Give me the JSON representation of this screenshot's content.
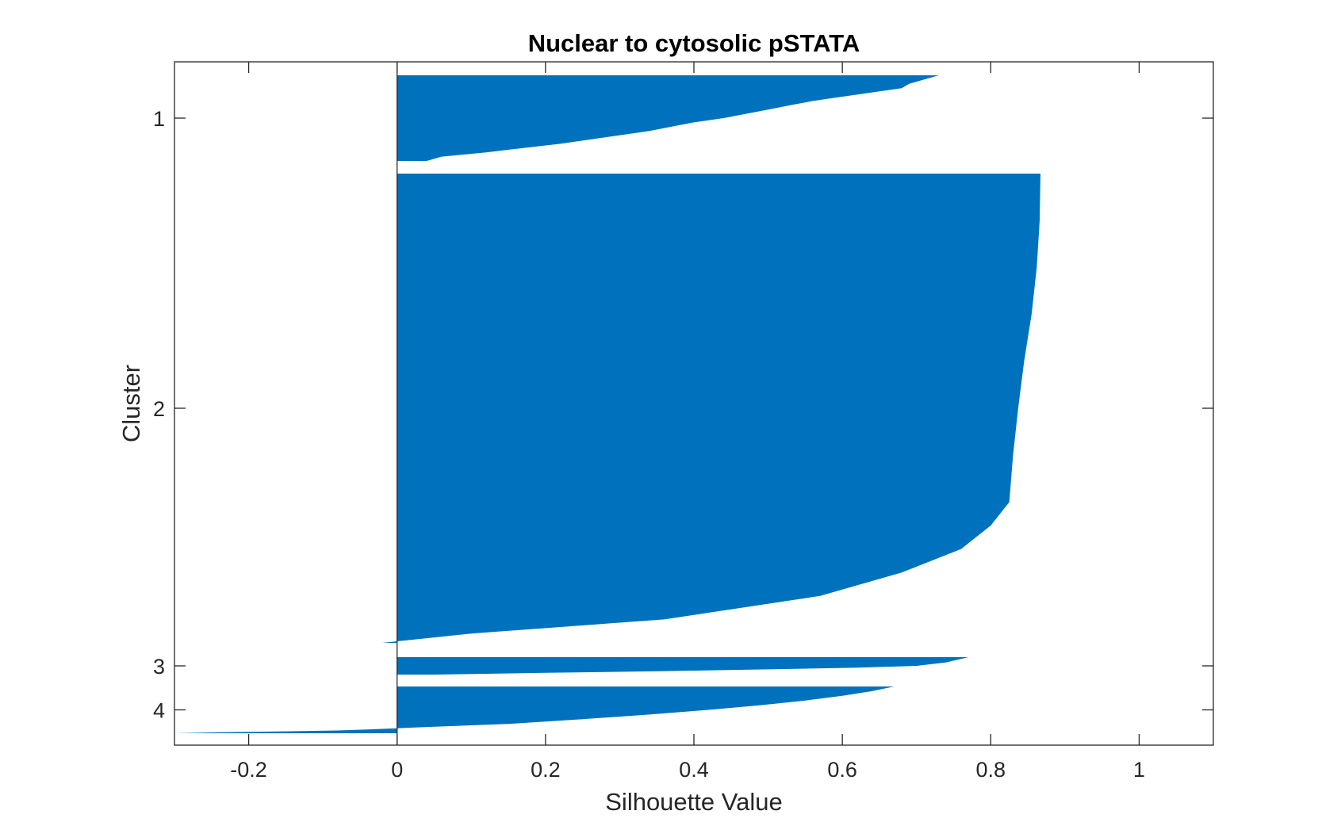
{
  "chart_data": {
    "type": "bar",
    "orientation": "horizontal",
    "title": "Nuclear to cytosolic pSTATA",
    "xlabel": "Silhouette Value",
    "ylabel": "Cluster",
    "xlim": [
      -0.3,
      1.1
    ],
    "xticks": [
      -0.2,
      0,
      0.2,
      0.4,
      0.6,
      0.8,
      1
    ],
    "xtick_labels": [
      "-0.2",
      "0",
      "0.2",
      "0.4",
      "0.6",
      "0.8",
      "1"
    ],
    "yticks": [
      "1",
      "2",
      "3",
      "4"
    ],
    "grid": false,
    "color": "#0072BD",
    "clusters": [
      {
        "name": "1",
        "profile": [
          [
            0,
            0.73
          ],
          [
            0.05,
            0.71
          ],
          [
            0.1,
            0.69
          ],
          [
            0.15,
            0.68
          ],
          [
            0.2,
            0.64
          ],
          [
            0.25,
            0.6
          ],
          [
            0.3,
            0.56
          ],
          [
            0.35,
            0.53
          ],
          [
            0.4,
            0.5
          ],
          [
            0.45,
            0.47
          ],
          [
            0.5,
            0.44
          ],
          [
            0.55,
            0.4
          ],
          [
            0.6,
            0.37
          ],
          [
            0.65,
            0.34
          ],
          [
            0.7,
            0.3
          ],
          [
            0.75,
            0.26
          ],
          [
            0.8,
            0.22
          ],
          [
            0.85,
            0.17
          ],
          [
            0.9,
            0.12
          ],
          [
            0.95,
            0.06
          ],
          [
            1,
            0.04
          ]
        ]
      },
      {
        "name": "2",
        "profile": [
          [
            0,
            0.867
          ],
          [
            0.1,
            0.866
          ],
          [
            0.2,
            0.862
          ],
          [
            0.3,
            0.855
          ],
          [
            0.4,
            0.845
          ],
          [
            0.5,
            0.837
          ],
          [
            0.6,
            0.83
          ],
          [
            0.7,
            0.825
          ],
          [
            0.75,
            0.8
          ],
          [
            0.8,
            0.76
          ],
          [
            0.85,
            0.68
          ],
          [
            0.9,
            0.57
          ],
          [
            0.95,
            0.36
          ],
          [
            0.98,
            0.1
          ],
          [
            1,
            -0.02
          ]
        ]
      },
      {
        "name": "3",
        "profile": [
          [
            0,
            0.77
          ],
          [
            0.3,
            0.74
          ],
          [
            0.5,
            0.7
          ],
          [
            0.6,
            0.62
          ],
          [
            0.7,
            0.5
          ],
          [
            0.8,
            0.36
          ],
          [
            0.9,
            0.2
          ],
          [
            1,
            0.05
          ]
        ]
      },
      {
        "name": "4",
        "profile": [
          [
            0,
            0.67
          ],
          [
            0.1,
            0.64
          ],
          [
            0.2,
            0.6
          ],
          [
            0.3,
            0.55
          ],
          [
            0.4,
            0.49
          ],
          [
            0.5,
            0.42
          ],
          [
            0.6,
            0.34
          ],
          [
            0.7,
            0.25
          ],
          [
            0.8,
            0.15
          ],
          [
            0.88,
            0.02
          ],
          [
            0.92,
            -0.04
          ],
          [
            0.94,
            -0.08
          ],
          [
            0.96,
            -0.15
          ],
          [
            0.98,
            -0.24
          ],
          [
            1,
            -0.3
          ]
        ]
      }
    ]
  }
}
